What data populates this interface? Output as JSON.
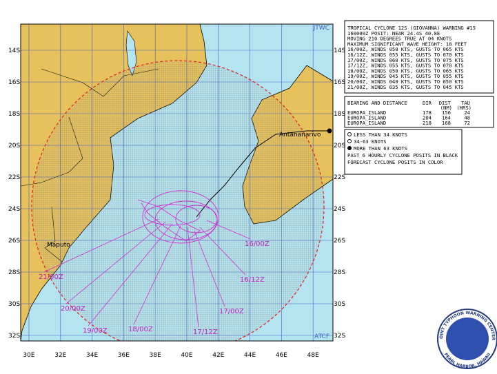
{
  "map": {
    "corner_top": "JTWC",
    "corner_bottom": "ATCF",
    "lat_labels": [
      "14S",
      "16S",
      "18S",
      "20S",
      "22S",
      "24S",
      "26S",
      "28S",
      "30S",
      "32S"
    ],
    "lon_labels": [
      "30E",
      "32E",
      "34E",
      "36E",
      "38E",
      "40E",
      "42E",
      "44E",
      "46E",
      "48E"
    ],
    "places": [
      "Antananarivo",
      "Maputo"
    ],
    "forecast_labels": [
      "16/00Z",
      "16/12Z",
      "17/00Z",
      "17/12Z",
      "18/00Z",
      "19/00Z",
      "20/00Z",
      "21/00Z"
    ]
  },
  "info": {
    "lines": [
      "TROPICAL CYCLONE 12S (GIOVANNA) WARNING #15",
      "160000Z POSIT: NEAR 24.4S 40.8E",
      "MOVING 210 DEGREES TRUE AT 04 KNOTS",
      "MAXIMUM SIGNIFICANT WAVE HEIGHT: 18 FEET",
      "16/00Z, WINDS 050 KTS, GUSTS TO 065 KTS",
      "16/12Z, WINDS 055 KTS, GUSTS TO 070 KTS",
      "17/00Z, WINDS 060 KTS, GUSTS TO 075 KTS",
      "17/12Z, WINDS 055 KTS, GUSTS TO 070 KTS",
      "18/00Z, WINDS 050 KTS, GUSTS TO 065 KTS",
      "19/00Z, WINDS 045 KTS, GUSTS TO 055 KTS",
      "20/00Z, WINDS 040 KTS, GUSTS TO 050 KTS",
      "21/00Z, WINDS 035 KTS, GUSTS TO 045 KTS"
    ],
    "table": {
      "title": "BEARING AND DISTANCE",
      "headers": [
        "DIR",
        "DIST",
        "TAU"
      ],
      "units": [
        "(NM)",
        "(HRS)"
      ],
      "rows": [
        [
          "EUROPA_ISLAND",
          178,
          156,
          24
        ],
        [
          "EUROPA_ISLAND",
          204,
          164,
          48
        ],
        [
          "EUROPA_ISLAND",
          218,
          168,
          72
        ]
      ]
    },
    "legend": [
      "LESS THAN 34 KNOTS",
      "34-63 KNOTS",
      "MORE THAN 63 KNOTS",
      "PAST 6 HOURLY CYCLONE POSITS IN BLACK",
      "FORECAST CYCLONE POSITS IN COLOR"
    ]
  },
  "logo": {
    "top": "JOINT TYPHOON WARNING CENTER",
    "bottom": "PEARL HARBOR, HAWAII"
  }
}
